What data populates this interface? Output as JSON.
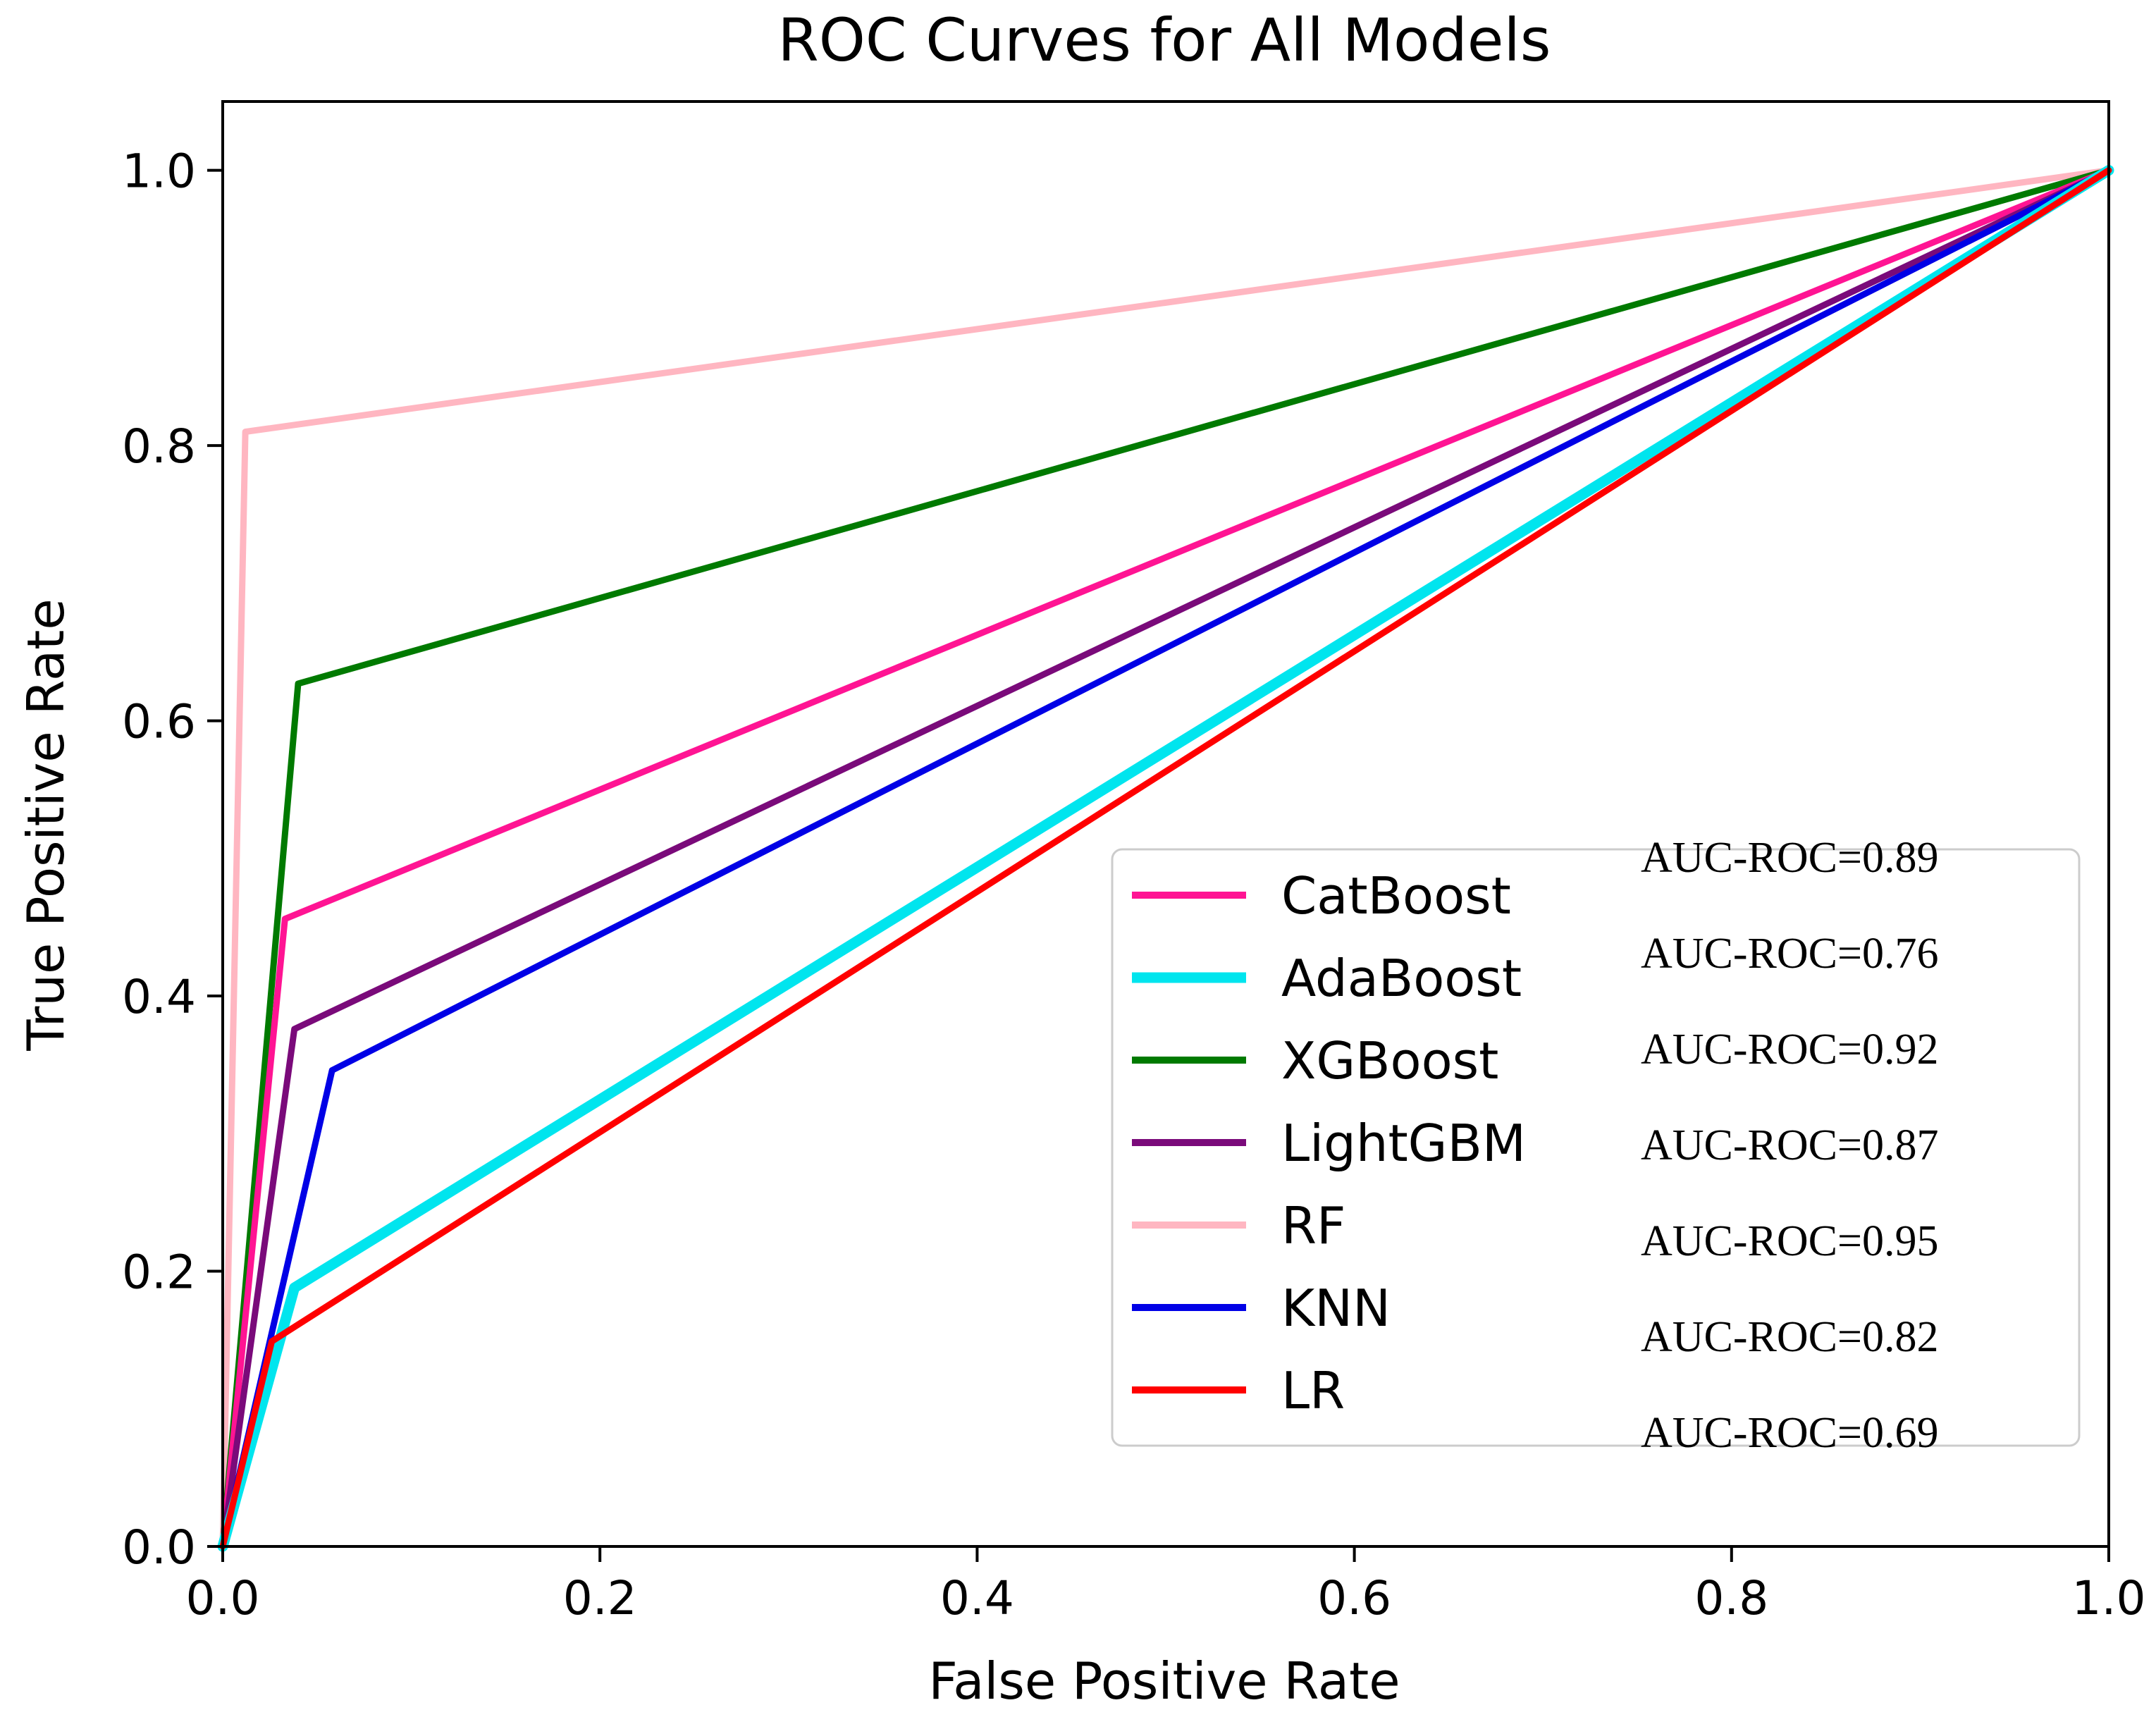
{
  "chart_data": {
    "type": "line",
    "title": "ROC Curves for All Models",
    "xlabel": "False Positive Rate",
    "ylabel": "True Positive Rate",
    "xlim": [
      0.0,
      1.0
    ],
    "ylim": [
      0.0,
      1.05
    ],
    "x_ticks": [
      0.0,
      0.2,
      0.4,
      0.6,
      0.8,
      1.0
    ],
    "y_ticks": [
      0.0,
      0.2,
      0.4,
      0.6,
      0.8,
      1.0
    ],
    "x_tick_labels": [
      "0.0",
      "0.2",
      "0.4",
      "0.6",
      "0.8",
      "1.0"
    ],
    "y_tick_labels": [
      "0.0",
      "0.2",
      "0.4",
      "0.6",
      "0.8",
      "1.0"
    ],
    "grid": false,
    "legend_position": "lower-right",
    "series": [
      {
        "name": "CatBoost",
        "color": "#ff1493",
        "x": [
          0.0,
          0.033,
          1.0
        ],
        "y": [
          0.0,
          0.456,
          1.0
        ]
      },
      {
        "name": "AdaBoost",
        "color": "#00e5ee",
        "x": [
          0.0,
          0.038,
          1.0
        ],
        "y": [
          0.0,
          0.188,
          1.0
        ]
      },
      {
        "name": "XGBoost",
        "color": "#007a00",
        "x": [
          0.0,
          0.04,
          1.0
        ],
        "y": [
          0.0,
          0.627,
          1.0
        ]
      },
      {
        "name": "LightGBM",
        "color": "#7a0a7a",
        "x": [
          0.0,
          0.038,
          1.0
        ],
        "y": [
          0.0,
          0.376,
          1.0
        ]
      },
      {
        "name": "RF",
        "color": "#ffb6c1",
        "x": [
          0.0,
          0.012,
          1.0
        ],
        "y": [
          0.0,
          0.81,
          1.0
        ]
      },
      {
        "name": "KNN",
        "color": "#0000e6",
        "x": [
          0.0,
          0.058,
          1.0
        ],
        "y": [
          0.0,
          0.346,
          1.0
        ]
      },
      {
        "name": "LR",
        "color": "#ff0000",
        "x": [
          0.0,
          0.026,
          1.0
        ],
        "y": [
          0.0,
          0.149,
          1.0
        ]
      }
    ],
    "annotations": [
      "AUC-ROC=0.89",
      "AUC-ROC=0.76",
      "AUC-ROC=0.92",
      "AUC-ROC=0.87",
      "AUC-ROC=0.95",
      "AUC-ROC=0.82",
      "AUC-ROC=0.69"
    ]
  }
}
